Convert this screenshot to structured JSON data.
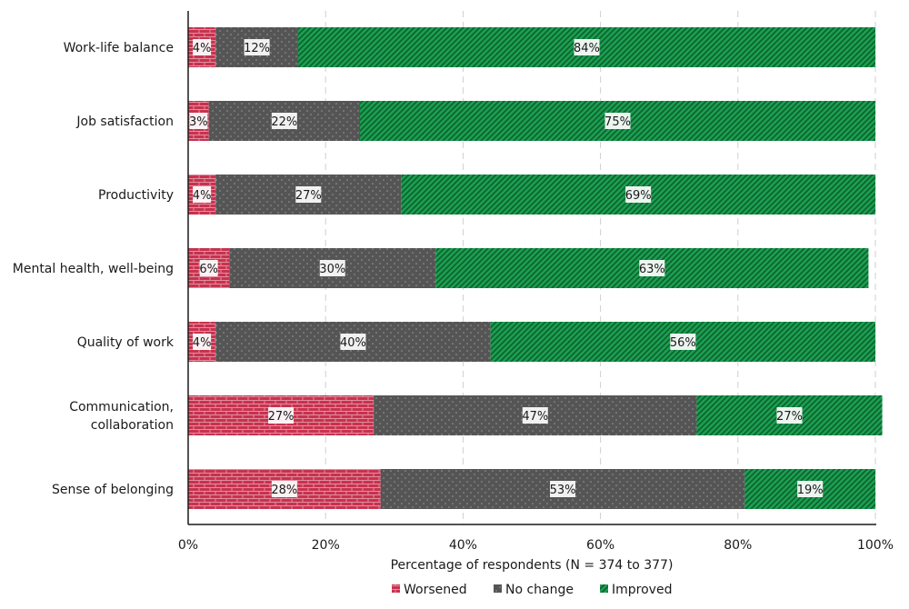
{
  "chart_data": {
    "type": "bar",
    "orientation": "horizontal",
    "stacked": true,
    "categories": [
      [
        "Work-life balance"
      ],
      [
        "Job satisfaction"
      ],
      [
        "Productivity"
      ],
      [
        "Mental health, well-being"
      ],
      [
        "Quality of work"
      ],
      [
        "Communication,",
        "collaboration"
      ],
      [
        "Sense of belonging"
      ]
    ],
    "series": [
      {
        "name": "Worsened",
        "color": "#c8324f",
        "pattern": "bricks",
        "values": [
          4,
          3,
          4,
          6,
          4,
          27,
          28
        ],
        "labels": [
          "4%",
          "3%",
          "4%",
          "6%",
          "4%",
          "27%",
          "28%"
        ]
      },
      {
        "name": "No change",
        "color": "#555555",
        "pattern": "dots",
        "values": [
          12,
          22,
          27,
          30,
          40,
          47,
          53
        ],
        "labels": [
          "12%",
          "22%",
          "27%",
          "30%",
          "40%",
          "47%",
          "53%"
        ]
      },
      {
        "name": "Improved",
        "color": "#1a9e4f",
        "pattern": "diagonal-stripes",
        "values": [
          84,
          75,
          69,
          63,
          56,
          27,
          19
        ],
        "labels": [
          "84%",
          "75%",
          "69%",
          "63%",
          "56%",
          "27%",
          "19%"
        ]
      }
    ],
    "xlim": [
      0,
      100
    ],
    "xticks": [
      0,
      20,
      40,
      60,
      80,
      100
    ],
    "xtick_labels": [
      "0%",
      "20%",
      "40%",
      "60%",
      "80%",
      "100%"
    ],
    "xlabel": "Percentage of respondents (N = 374 to 377)",
    "ylabel": "",
    "title": "",
    "grid": "vertical dashed",
    "legend_position": "bottom-center"
  }
}
